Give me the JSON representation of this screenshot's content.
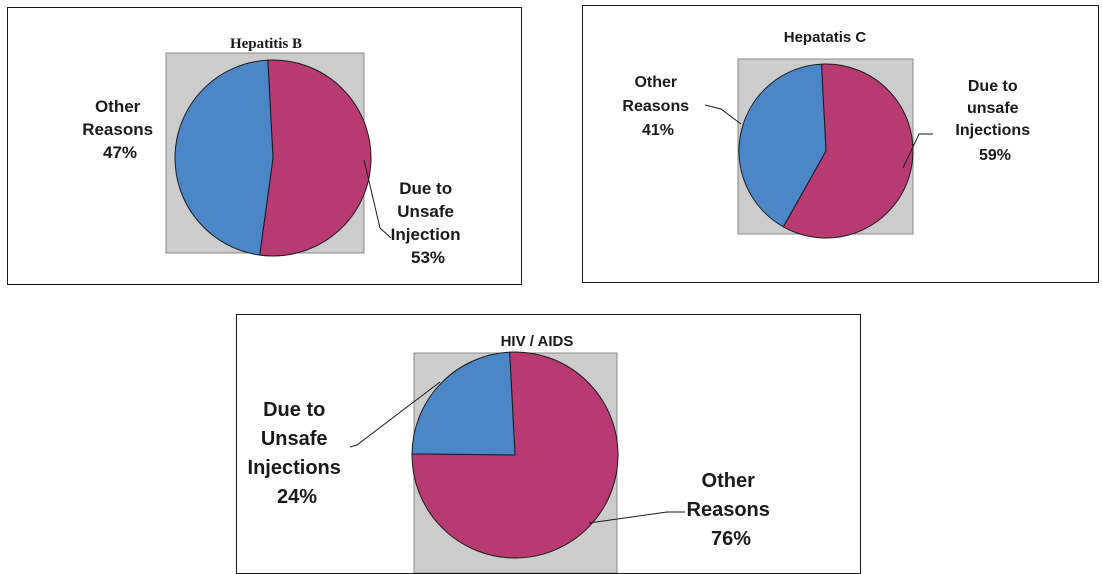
{
  "colors": {
    "blue": "#4a86c8",
    "magenta": "#b83a72",
    "plot_bg": "#cccccc"
  },
  "chart_data": [
    {
      "type": "pie",
      "title": "Hepatitis B",
      "series": [
        {
          "label_lines": [
            "Due to",
            "Unsafe",
            "Injection"
          ],
          "percent_label": "53%",
          "value": 53,
          "color": "#b83a72"
        },
        {
          "label_lines": [
            "Other",
            "Reasons"
          ],
          "percent_label": "47%",
          "value": 47,
          "color": "#4a86c8"
        }
      ]
    },
    {
      "type": "pie",
      "title": "Hepatatis C",
      "series": [
        {
          "label_lines": [
            "Due to",
            "unsafe",
            "Injections"
          ],
          "percent_label": "59%",
          "value": 59,
          "color": "#b83a72"
        },
        {
          "label_lines": [
            "Other",
            "Reasons"
          ],
          "percent_label": "41%",
          "value": 41,
          "color": "#4a86c8"
        }
      ]
    },
    {
      "type": "pie",
      "title": "HIV / AIDS",
      "series": [
        {
          "label_lines": [
            "Other",
            "Reasons"
          ],
          "percent_label": "76%",
          "value": 76,
          "color": "#b83a72"
        },
        {
          "label_lines": [
            "Due to",
            "Unsafe",
            "Injections"
          ],
          "percent_label": "24%",
          "value": 24,
          "color": "#4a86c8"
        }
      ]
    }
  ]
}
